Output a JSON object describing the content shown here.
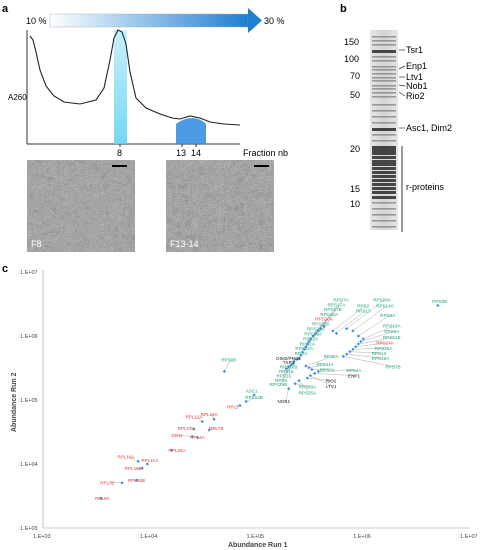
{
  "panel_a": {
    "letter": "a",
    "gradient_start": "10 %",
    "gradient_end": "30 %",
    "y_label": "A260",
    "x_ticks": [
      "8",
      "13",
      "14"
    ],
    "x_label": "Fraction nb",
    "micrograph_left_label": "F8",
    "micrograph_right_label": "F13-14",
    "peak_color": "#7fd8f0",
    "peak2_color": "#3a8ee0"
  },
  "panel_b": {
    "letter": "b",
    "markers": [
      "150",
      "100",
      "70",
      "50",
      "20",
      "15",
      "10"
    ],
    "bands": [
      "Tsr1",
      "Enp1",
      "Ltv1",
      "Nob1",
      "Rio2",
      "Asc1, Dim2",
      "r-proteins"
    ]
  },
  "panel_c": {
    "letter": "c",
    "chart_data": {
      "type": "scatter",
      "xlabel": "Abundance Run 1",
      "ylabel": "Abundance Run 2",
      "x_scale": "log",
      "y_scale": "log",
      "xlim": [
        1000,
        10000000
      ],
      "ylim": [
        1000,
        10000000
      ],
      "x_ticks": [
        "1.E+03",
        "1.E+04",
        "1.E+05",
        "1.E+06",
        "1.E+07"
      ],
      "y_ticks": [
        "1.E+07",
        "1.E+06",
        "1.E+05",
        "1.E+04",
        "1.E+03"
      ],
      "colors": {
        "green": "#1aa37a",
        "red": "#e03a3a",
        "black": "#222222",
        "point": "#3b8fd6"
      },
      "points": [
        {
          "label": "RPL8A",
          "x": 3500,
          "y": 2900,
          "color": "red"
        },
        {
          "label": "RPL32",
          "x": 5500,
          "y": 5100,
          "color": "red"
        },
        {
          "label": "RPL36B",
          "x": 7500,
          "y": 5600,
          "color": "red"
        },
        {
          "label": "RPL16A",
          "x": 7800,
          "y": 11000,
          "color": "red"
        },
        {
          "label": "RPL11A",
          "x": 9500,
          "y": 10000,
          "color": "red"
        },
        {
          "label": "RPL16B",
          "x": 8500,
          "y": 8600,
          "color": "red"
        },
        {
          "label": "RPL26A",
          "x": 16000,
          "y": 16500,
          "color": "red"
        },
        {
          "label": "DIM1",
          "x": 25000,
          "y": 27000,
          "color": "red"
        },
        {
          "label": "RPL4A",
          "x": 28000,
          "y": 26000,
          "color": "red"
        },
        {
          "label": "RPL17A",
          "x": 26000,
          "y": 35000,
          "color": "red"
        },
        {
          "label": "RPL7B",
          "x": 36000,
          "y": 34000,
          "color": "red"
        },
        {
          "label": "RPL12A",
          "x": 31000,
          "y": 46000,
          "color": "red"
        },
        {
          "label": "RPL19A",
          "x": 40000,
          "y": 50000,
          "color": "red"
        },
        {
          "label": "RPL3",
          "x": 70000,
          "y": 82000,
          "color": "red"
        },
        {
          "label": "RPS14B",
          "x": 80000,
          "y": 95000,
          "color": "green"
        },
        {
          "label": "ASC1",
          "x": 95000,
          "y": 120000,
          "color": "green"
        },
        {
          "label": "RPS9B",
          "x": 50000,
          "y": 280000,
          "color": "green"
        },
        {
          "label": "NOB1",
          "x": 200000,
          "y": 150000,
          "color": "black"
        },
        {
          "label": "RPS30A",
          "x": 230000,
          "y": 180000,
          "color": "green"
        },
        {
          "label": "RPS25A",
          "x": 250000,
          "y": 200000,
          "color": "green"
        },
        {
          "label": "RIO2",
          "x": 300000,
          "y": 220000,
          "color": "black"
        },
        {
          "label": "LTV1",
          "x": 320000,
          "y": 240000,
          "color": "black"
        },
        {
          "label": "ENP1",
          "x": 350000,
          "y": 260000,
          "color": "black"
        },
        {
          "label": "RPS4A",
          "x": 380000,
          "y": 280000,
          "color": "green"
        },
        {
          "label": "RPS0A",
          "x": 330000,
          "y": 300000,
          "color": "green"
        },
        {
          "label": "RPS11A",
          "x": 310000,
          "y": 320000,
          "color": "green"
        },
        {
          "label": "RPS6A",
          "x": 290000,
          "y": 340000,
          "color": "green"
        },
        {
          "label": "RPS29B",
          "x": 190000,
          "y": 310000,
          "color": "green"
        },
        {
          "label": "RPS5",
          "x": 200000,
          "y": 330000,
          "color": "green"
        },
        {
          "label": "RPS15",
          "x": 210000,
          "y": 350000,
          "color": "green"
        },
        {
          "label": "RPS18",
          "x": 220000,
          "y": 370000,
          "color": "green"
        },
        {
          "label": "RPS16B",
          "x": 225000,
          "y": 400000,
          "color": "green"
        },
        {
          "label": "DIM2/PNO1",
          "x": 240000,
          "y": 430000,
          "color": "black"
        },
        {
          "label": "TSR1",
          "x": 250000,
          "y": 450000,
          "color": "black"
        },
        {
          "label": "RPS3",
          "x": 260000,
          "y": 500000,
          "color": "green"
        },
        {
          "label": "RPS22A",
          "x": 270000,
          "y": 560000,
          "color": "green"
        },
        {
          "label": "RPS1A",
          "x": 280000,
          "y": 620000,
          "color": "green"
        },
        {
          "label": "RPS20",
          "x": 290000,
          "y": 680000,
          "color": "green"
        },
        {
          "label": "RPS29A",
          "x": 300000,
          "y": 750000,
          "color": "green"
        },
        {
          "label": "RPS21A",
          "x": 310000,
          "y": 820000,
          "color": "green"
        },
        {
          "label": "RPS23A",
          "x": 320000,
          "y": 900000,
          "color": "green"
        },
        {
          "label": "RPS10A",
          "x": 340000,
          "y": 1000000,
          "color": "red"
        },
        {
          "label": "RPS16A",
          "x": 360000,
          "y": 1100000,
          "color": "green"
        },
        {
          "label": "RPS27B",
          "x": 380000,
          "y": 1200000,
          "color": "green"
        },
        {
          "label": "RPS17A",
          "x": 400000,
          "y": 1300000,
          "color": "green"
        },
        {
          "label": "RPS7A",
          "x": 430000,
          "y": 1400000,
          "color": "green"
        },
        {
          "label": "RPS2",
          "x": 520000,
          "y": 1200000,
          "color": "green"
        },
        {
          "label": "RPS13",
          "x": 560000,
          "y": 1100000,
          "color": "green"
        },
        {
          "label": "RPS28A",
          "x": 700000,
          "y": 1300000,
          "color": "green"
        },
        {
          "label": "RPS14A",
          "x": 800000,
          "y": 1200000,
          "color": "green"
        },
        {
          "label": "RPS9A",
          "x": 900000,
          "y": 1000000,
          "color": "green"
        },
        {
          "label": "RPS18A",
          "x": 1000000,
          "y": 900000,
          "color": "green"
        },
        {
          "label": "RPS8A",
          "x": 950000,
          "y": 820000,
          "color": "green"
        },
        {
          "label": "RPS21B",
          "x": 900000,
          "y": 750000,
          "color": "green"
        },
        {
          "label": "RPS24A",
          "x": 850000,
          "y": 680000,
          "color": "red"
        },
        {
          "label": "RPS26A",
          "x": 800000,
          "y": 620000,
          "color": "green"
        },
        {
          "label": "RPS12",
          "x": 750000,
          "y": 570000,
          "color": "green"
        },
        {
          "label": "RPS19A",
          "x": 700000,
          "y": 520000,
          "color": "green"
        },
        {
          "label": "RPS7B",
          "x": 650000,
          "y": 480000,
          "color": "green"
        },
        {
          "label": "RPS0B",
          "x": 5000000,
          "y": 3000000,
          "color": "green"
        }
      ],
      "labels": [
        {
          "text": "RPS7A",
          "x": 620000,
          "y": 3700000,
          "color": "green"
        },
        {
          "text": "RPS17A",
          "x": 560000,
          "y": 3100000,
          "color": "green"
        },
        {
          "text": "RPS27B",
          "x": 520000,
          "y": 2600000,
          "color": "green"
        },
        {
          "text": "RPS16A",
          "x": 480000,
          "y": 2200000,
          "color": "green"
        },
        {
          "text": "RPS10A",
          "x": 430000,
          "y": 1850000,
          "color": "red"
        },
        {
          "text": "RPS23A",
          "x": 400000,
          "y": 1550000,
          "color": "green"
        },
        {
          "text": "RPS21A",
          "x": 360000,
          "y": 1300000,
          "color": "green"
        },
        {
          "text": "RPS29A",
          "x": 340000,
          "y": 1080000,
          "color": "green"
        },
        {
          "text": "RPS20",
          "x": 320000,
          "y": 900000,
          "color": "green"
        },
        {
          "text": "RPS1A",
          "x": 300000,
          "y": 760000,
          "color": "green"
        },
        {
          "text": "RPS22A",
          "x": 280000,
          "y": 640000,
          "color": "green"
        },
        {
          "text": "RPS3",
          "x": 260000,
          "y": 540000,
          "color": "green"
        },
        {
          "text": "DIM2/PNO1",
          "x": 200000,
          "y": 450000,
          "color": "black"
        },
        {
          "text": "TSR1",
          "x": 200000,
          "y": 390000,
          "color": "black"
        },
        {
          "text": "RPS16B",
          "x": 200000,
          "y": 330000,
          "color": "green"
        },
        {
          "text": "RPS18",
          "x": 190000,
          "y": 280000,
          "color": "green"
        },
        {
          "text": "RPS15",
          "x": 180000,
          "y": 240000,
          "color": "green"
        },
        {
          "text": "RPS5",
          "x": 170000,
          "y": 205000,
          "color": "green"
        },
        {
          "text": "RPS29B",
          "x": 160000,
          "y": 175000,
          "color": "green"
        },
        {
          "text": "RPS2",
          "x": 1000000,
          "y": 3000000,
          "color": "green"
        },
        {
          "text": "RPS13",
          "x": 1000000,
          "y": 2500000,
          "color": "green"
        },
        {
          "text": "RPS28A",
          "x": 1500000,
          "y": 3700000,
          "color": "green"
        },
        {
          "text": "RPS14A",
          "x": 1600000,
          "y": 3000000,
          "color": "green"
        },
        {
          "text": "RPS9A",
          "x": 1700000,
          "y": 2100000,
          "color": "green"
        },
        {
          "text": "RPS18A",
          "x": 1850000,
          "y": 1450000,
          "color": "green"
        },
        {
          "text": "RPS8A",
          "x": 1850000,
          "y": 1180000,
          "color": "green"
        },
        {
          "text": "RPS21B",
          "x": 1850000,
          "y": 950000,
          "color": "green"
        },
        {
          "text": "RPS24A",
          "x": 1600000,
          "y": 780000,
          "color": "red"
        },
        {
          "text": "RPS26A",
          "x": 1550000,
          "y": 650000,
          "color": "green"
        },
        {
          "text": "RPS12",
          "x": 1400000,
          "y": 540000,
          "color": "green"
        },
        {
          "text": "RPS19A",
          "x": 1450000,
          "y": 450000,
          "color": "green"
        },
        {
          "text": "RPS7B",
          "x": 1900000,
          "y": 330000,
          "color": "green"
        },
        {
          "text": "RPS6A",
          "x": 500000,
          "y": 480000,
          "color": "green"
        },
        {
          "text": "RPS11A",
          "x": 440000,
          "y": 360000,
          "color": "green"
        },
        {
          "text": "RPS0A",
          "x": 460000,
          "y": 300000,
          "color": "green"
        },
        {
          "text": "RPS4A",
          "x": 820000,
          "y": 290000,
          "color": "green"
        },
        {
          "text": "ENP1",
          "x": 820000,
          "y": 240000,
          "color": "black"
        },
        {
          "text": "RIO2",
          "x": 500000,
          "y": 200000,
          "color": "black"
        },
        {
          "text": "LTV1",
          "x": 500000,
          "y": 165000,
          "color": "black"
        },
        {
          "text": "RPS30A",
          "x": 300000,
          "y": 160000,
          "color": "green"
        },
        {
          "text": "RPS25A",
          "x": 300000,
          "y": 130000,
          "color": "green"
        },
        {
          "text": "NOB1",
          "x": 180000,
          "y": 95000,
          "color": "black"
        },
        {
          "text": "RPS9B",
          "x": 55000,
          "y": 430000,
          "color": "green"
        },
        {
          "text": "ASC1",
          "x": 90000,
          "y": 140000,
          "color": "green"
        },
        {
          "text": "RPS14B",
          "x": 95000,
          "y": 110000,
          "color": "green"
        },
        {
          "text": "RPL3",
          "x": 60000,
          "y": 78000,
          "color": "red"
        },
        {
          "text": "RPL19A",
          "x": 36000,
          "y": 60000,
          "color": "red"
        },
        {
          "text": "RPL12A",
          "x": 26000,
          "y": 55000,
          "color": "red"
        },
        {
          "text": "RPL7B",
          "x": 42000,
          "y": 36000,
          "color": "red"
        },
        {
          "text": "RPL17A",
          "x": 22000,
          "y": 36000,
          "color": "red"
        },
        {
          "text": "DIM1",
          "x": 18000,
          "y": 28000,
          "color": "red"
        },
        {
          "text": "RPL4A",
          "x": 28000,
          "y": 26000,
          "color": "red"
        },
        {
          "text": "RPL26A",
          "x": 18000,
          "y": 16500,
          "color": "red"
        },
        {
          "text": "RPL16A",
          "x": 6000,
          "y": 13000,
          "color": "red"
        },
        {
          "text": "RPL11A",
          "x": 10000,
          "y": 11500,
          "color": "red"
        },
        {
          "text": "RPL16B",
          "x": 7000,
          "y": 8600,
          "color": "red"
        },
        {
          "text": "RPL32",
          "x": 4000,
          "y": 5100,
          "color": "red"
        },
        {
          "text": "RPL36B",
          "x": 7500,
          "y": 5600,
          "color": "red"
        },
        {
          "text": "RPL8A",
          "x": 3600,
          "y": 2900,
          "color": "red"
        },
        {
          "text": "RPS0B",
          "x": 5200000,
          "y": 3500000,
          "color": "green"
        }
      ]
    }
  }
}
